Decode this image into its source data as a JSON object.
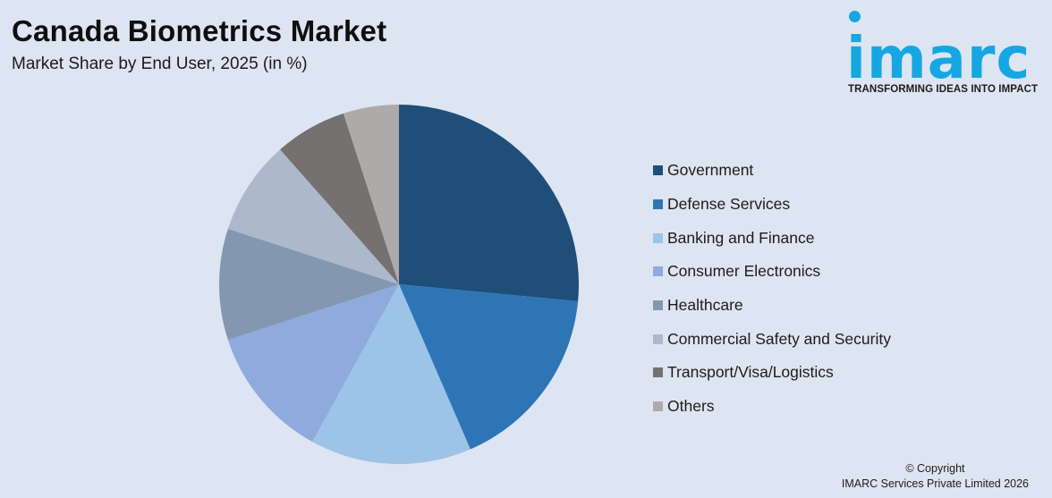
{
  "header": {
    "title": "Canada Biometrics Market",
    "subtitle": "Market Share by End User, 2025 (in %)"
  },
  "logo": {
    "wordmark": "imarc",
    "tagline": "TRANSFORMING IDEAS INTO IMPACT",
    "color": "#16a7e3"
  },
  "chart_data": {
    "type": "pie",
    "title": "Canada Biometrics Market",
    "subtitle": "Market Share by End User, 2025 (in %)",
    "legend_position": "right",
    "start_angle": "12 o'clock",
    "direction": "clockwise",
    "categories": [
      "Government",
      "Defense Services",
      "Banking and Finance",
      "Consumer Electronics",
      "Healthcare",
      "Commercial Safety and Security",
      "Transport/Visa/Logistics",
      "Others"
    ],
    "values": [
      26.5,
      17.0,
      14.5,
      12.0,
      10.0,
      8.5,
      6.5,
      5.0
    ],
    "colors": [
      "#1f4e79",
      "#2e75b6",
      "#9dc3e6",
      "#8faadc",
      "#8497b0",
      "#adb9ca",
      "#767171",
      "#aeaaaa"
    ]
  },
  "footer": {
    "copyright_line1": "© Copyright",
    "copyright_line2": "IMARC Services Private Limited 2026"
  }
}
